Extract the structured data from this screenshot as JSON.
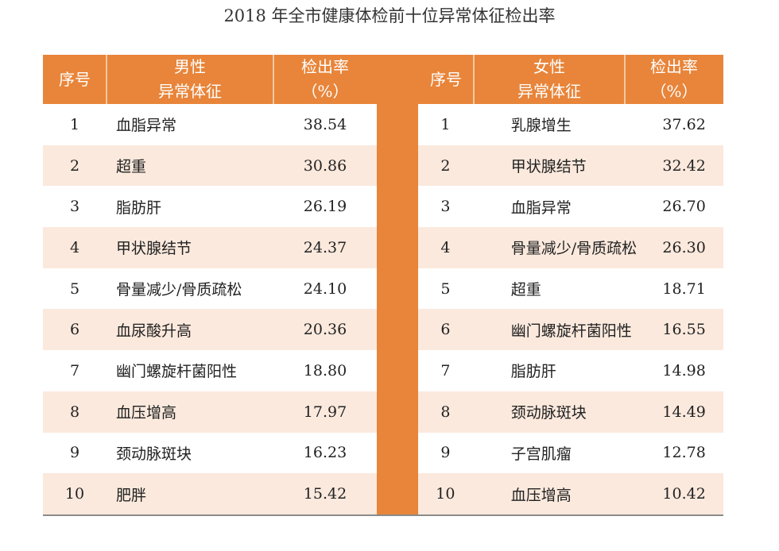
{
  "title": "2018 年全市健康体检前十位异常体征检出率",
  "male": {
    "header": {
      "index": "序号",
      "col_line1": "男性",
      "col_line2": "异常体征",
      "rate_line1": "检出率",
      "rate_line2": "（%）"
    },
    "rows": [
      {
        "no": "1",
        "name": "血脂异常",
        "rate": "38.54"
      },
      {
        "no": "2",
        "name": "超重",
        "rate": "30.86"
      },
      {
        "no": "3",
        "name": "脂肪肝",
        "rate": "26.19"
      },
      {
        "no": "4",
        "name": "甲状腺结节",
        "rate": "24.37"
      },
      {
        "no": "5",
        "name": "骨量减少/骨质疏松",
        "rate": "24.10"
      },
      {
        "no": "6",
        "name": "血尿酸升高",
        "rate": "20.36"
      },
      {
        "no": "7",
        "name": "幽门螺旋杆菌阳性",
        "rate": "18.80"
      },
      {
        "no": "8",
        "name": "血压增高",
        "rate": "17.97"
      },
      {
        "no": "9",
        "name": "颈动脉斑块",
        "rate": "16.23"
      },
      {
        "no": "10",
        "name": "肥胖",
        "rate": "15.42"
      }
    ]
  },
  "female": {
    "header": {
      "index": "序号",
      "col_line1": "女性",
      "col_line2": "异常体征",
      "rate_line1": "检出率",
      "rate_line2": "（%）"
    },
    "rows": [
      {
        "no": "1",
        "name": "乳腺增生",
        "rate": "37.62"
      },
      {
        "no": "2",
        "name": "甲状腺结节",
        "rate": "32.42"
      },
      {
        "no": "3",
        "name": "血脂异常",
        "rate": "26.70"
      },
      {
        "no": "4",
        "name": "骨量减少/骨质疏松",
        "rate": "26.30"
      },
      {
        "no": "5",
        "name": "超重",
        "rate": "18.71"
      },
      {
        "no": "6",
        "name": "幽门螺旋杆菌阳性",
        "rate": "16.55"
      },
      {
        "no": "7",
        "name": "脂肪肝",
        "rate": "14.98"
      },
      {
        "no": "8",
        "name": "颈动脉斑块",
        "rate": "14.49"
      },
      {
        "no": "9",
        "name": "子宫肌瘤",
        "rate": "12.78"
      },
      {
        "no": "10",
        "name": "血压增高",
        "rate": "10.42"
      }
    ]
  },
  "colors": {
    "header_bg": "#e8853a",
    "alt_row_bg": "#fbe9dd"
  }
}
